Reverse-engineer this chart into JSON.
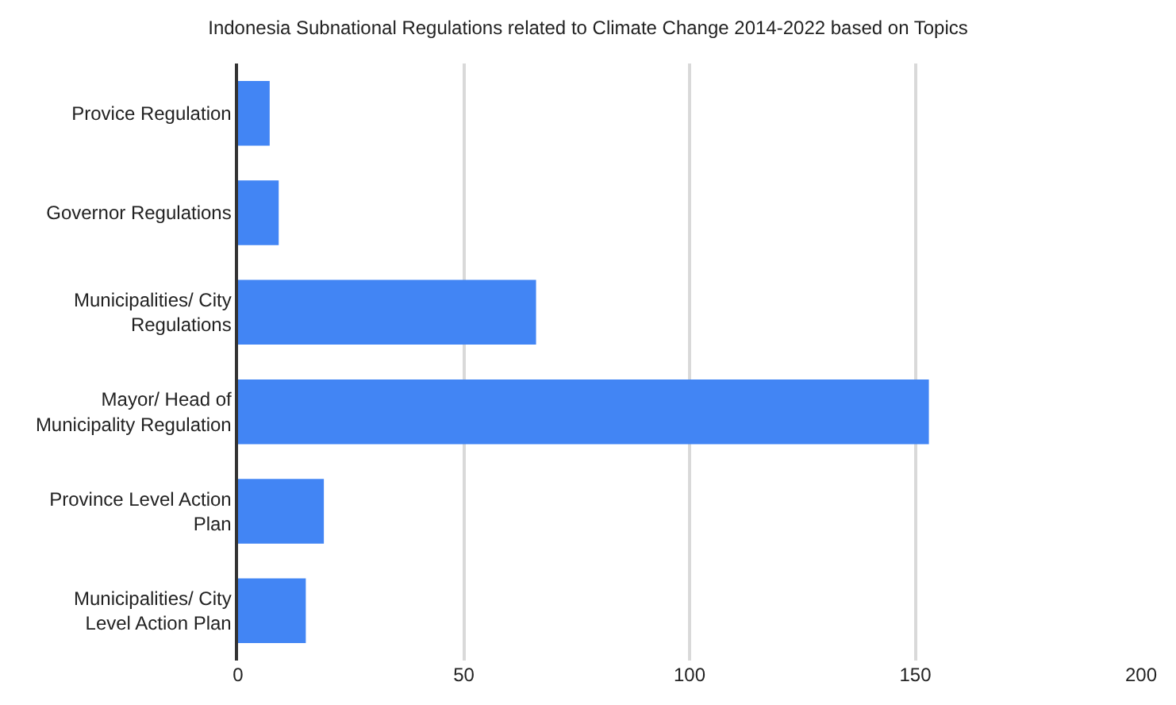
{
  "chart_data": {
    "type": "bar",
    "orientation": "horizontal",
    "title": "Indonesia Subnational Regulations related to Climate Change 2014-2022 based on Topics",
    "categories": [
      "Provice Regulation",
      "Governor Regulations",
      "Municipalities/ City Regulations",
      "Mayor/ Head of Municipality Regulation",
      "Province Level Action Plan",
      "Municipalities/ City Level Action Plan"
    ],
    "values": [
      7,
      9,
      66,
      153,
      19,
      15
    ],
    "color": "#4285f4",
    "xlim": [
      0,
      200
    ],
    "xticks": [
      0,
      50,
      100,
      150,
      200
    ],
    "grid": "x"
  }
}
